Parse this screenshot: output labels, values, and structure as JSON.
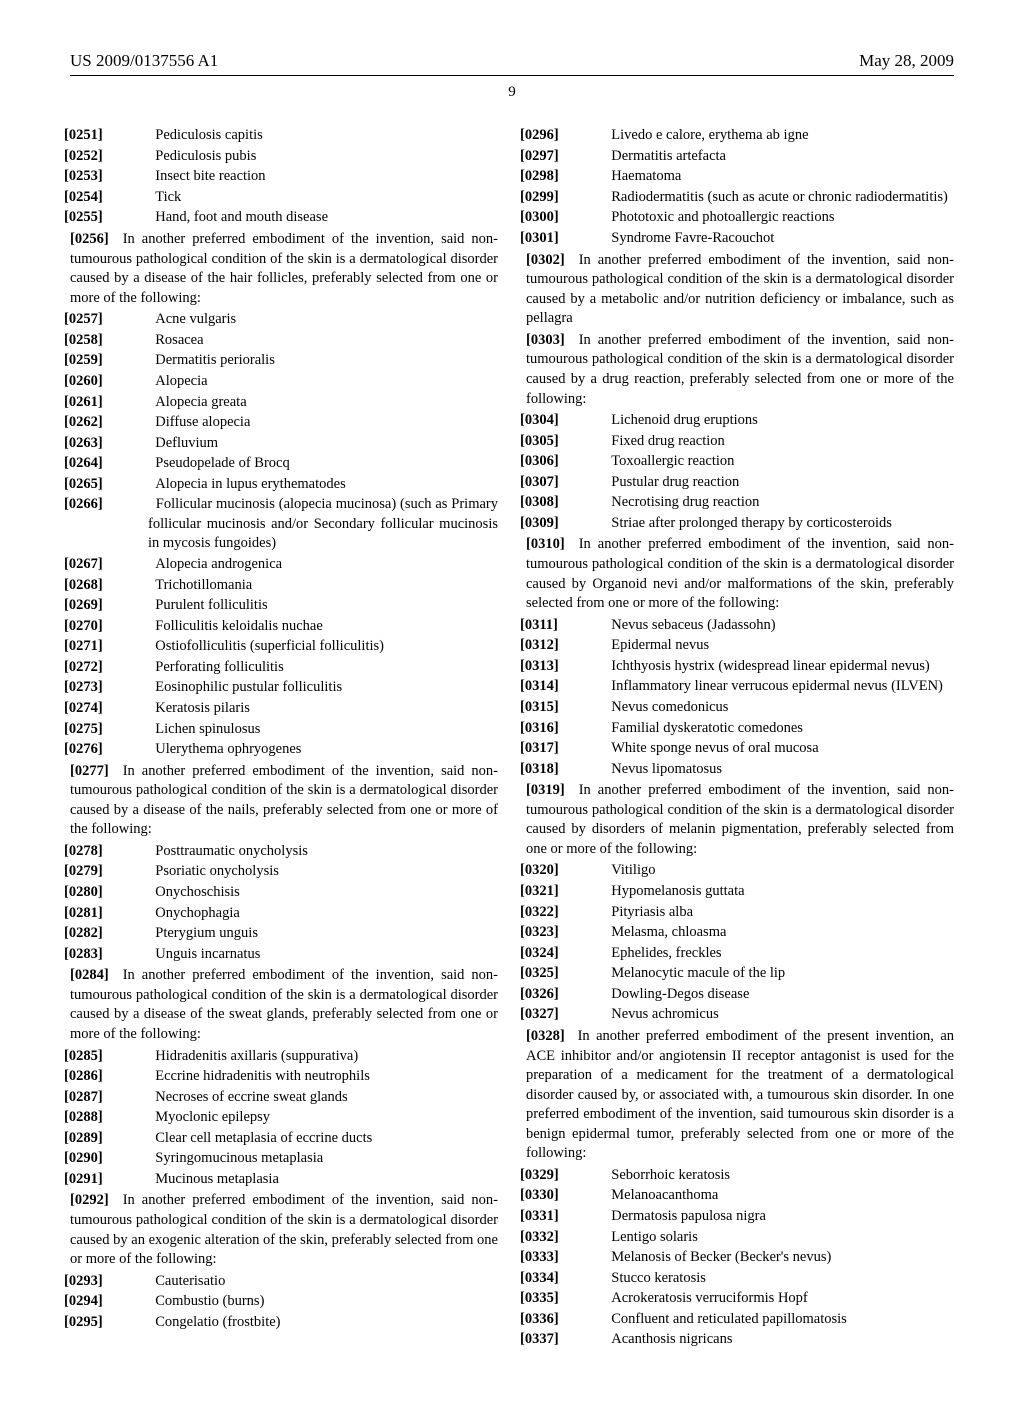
{
  "header": {
    "docnum": "US 2009/0137556 A1",
    "date": "May 28, 2009",
    "pagenum": "9"
  },
  "col": {
    "e0251": "Pediculosis capitis",
    "e0252": "Pediculosis pubis",
    "e0253": "Insect bite reaction",
    "e0254": "Tick",
    "e0255": "Hand, foot and mouth disease",
    "p0256": "In another preferred embodiment of the invention, said non-tumourous pathological condition of the skin is a dermatological disorder caused by a disease of the hair follicles, preferably selected from one or more of the following:",
    "e0257": "Acne vulgaris",
    "e0258": "Rosacea",
    "e0259": "Dermatitis perioralis",
    "e0260": "Alopecia",
    "e0261": "Alopecia greata",
    "e0262": "Diffuse alopecia",
    "e0263": "Defluvium",
    "e0264": "Pseudopelade of Brocq",
    "e0265": "Alopecia in lupus erythematodes",
    "e0266": "Follicular mucinosis (alopecia mucinosa) (such as Primary follicular mucinosis and/or Secondary follicular mucinosis in mycosis fungoides)",
    "e0267": "Alopecia androgenica",
    "e0268": "Trichotillomania",
    "e0269": "Purulent folliculitis",
    "e0270": "Folliculitis keloidalis nuchae",
    "e0271": "Ostiofolliculitis (superficial folliculitis)",
    "e0272": "Perforating folliculitis",
    "e0273": "Eosinophilic pustular folliculitis",
    "e0274": "Keratosis pilaris",
    "e0275": "Lichen spinulosus",
    "e0276": "Ulerythema ophryogenes",
    "p0277": "In another preferred embodiment of the invention, said non-tumourous pathological condition of the skin is a dermatological disorder caused by a disease of the nails, preferably selected from one or more of the following:",
    "e0278": "Posttraumatic onycholysis",
    "e0279": "Psoriatic onycholysis",
    "e0280": "Onychoschisis",
    "e0281": "Onychophagia",
    "e0282": "Pterygium unguis",
    "e0283": "Unguis incarnatus",
    "p0284": "In another preferred embodiment of the invention, said non-tumourous pathological condition of the skin is a dermatological disorder caused by a disease of the sweat glands, preferably selected from one or more of the following:",
    "e0285": "Hidradenitis axillaris (suppurativa)",
    "e0286": "Eccrine hidradenitis with neutrophils",
    "e0287": "Necroses of eccrine sweat glands",
    "e0288": "Myoclonic epilepsy",
    "e0289": "Clear cell metaplasia of eccrine ducts",
    "e0290": "Syringomucinous metaplasia",
    "e0291": "Mucinous metaplasia",
    "p0292": "In another preferred embodiment of the invention, said non-tumourous pathological condition of the skin is a dermatological disorder caused by an exogenic alteration of the skin, preferably selected from one or more of the following:",
    "e0293": "Cauterisatio",
    "e0294": "Combustio (burns)",
    "e0295": "Congelatio (frostbite)",
    "e0296": "Livedo e calore, erythema ab igne",
    "e0297": "Dermatitis artefacta",
    "e0298": "Haematoma",
    "e0299": "Radiodermatitis (such as acute or chronic radiodermatitis)",
    "e0300": "Phototoxic and photoallergic reactions",
    "e0301": "Syndrome Favre-Racouchot",
    "p0302": "In another preferred embodiment of the invention, said non-tumourous pathological condition of the skin is a dermatological disorder caused by a metabolic and/or nutrition deficiency or imbalance, such as pellagra",
    "p0303": "In another preferred embodiment of the invention, said non-tumourous pathological condition of the skin is a dermatological disorder caused by a drug reaction, preferably selected from one or more of the following:",
    "e0304": "Lichenoid drug eruptions",
    "e0305": "Fixed drug reaction",
    "e0306": "Toxoallergic reaction",
    "e0307": "Pustular drug reaction",
    "e0308": "Necrotising drug reaction",
    "e0309": "Striae after prolonged therapy by corticosteroids",
    "p0310": "In another preferred embodiment of the invention, said non-tumourous pathological condition of the skin is a dermatological disorder caused by Organoid nevi and/or malformations of the skin, preferably selected from one or more of the following:",
    "e0311": "Nevus sebaceus (Jadassohn)",
    "e0312": "Epidermal nevus",
    "e0313": "Ichthyosis hystrix (widespread linear epidermal nevus)",
    "e0314": "Inflammatory linear verrucous epidermal nevus (ILVEN)",
    "e0315": "Nevus comedonicus",
    "e0316": "Familial dyskeratotic comedones",
    "e0317": "White sponge nevus of oral mucosa",
    "e0318": "Nevus lipomatosus",
    "p0319": "In another preferred embodiment of the invention, said non-tumourous pathological condition of the skin is a dermatological disorder caused by disorders of melanin pigmentation, preferably selected from one or more of the following:",
    "e0320": "Vitiligo",
    "e0321": "Hypomelanosis guttata",
    "e0322": "Pityriasis alba",
    "e0323": "Melasma, chloasma",
    "e0324": "Ephelides, freckles",
    "e0325": "Melanocytic macule of the lip",
    "e0326": "Dowling-Degos disease",
    "e0327": "Nevus achromicus",
    "p0328": "In another preferred embodiment of the present invention, an ACE inhibitor and/or angiotensin II receptor antagonist is used for the preparation of a medicament for the treatment of a dermatological disorder caused by, or associated with, a tumourous skin disorder. In one preferred embodiment of the invention, said tumourous skin disorder is a benign epidermal tumor, preferably selected from one or more of the following:",
    "e0329": "Seborrhoic keratosis",
    "e0330": "Melanoacanthoma",
    "e0331": "Dermatosis papulosa nigra",
    "e0332": "Lentigo solaris",
    "e0333": "Melanosis of Becker (Becker's nevus)",
    "e0334": "Stucco keratosis",
    "e0335": "Acrokeratosis verruciformis Hopf",
    "e0336": "Confluent and reticulated papillomatosis",
    "e0337": "Acanthosis nigricans"
  }
}
